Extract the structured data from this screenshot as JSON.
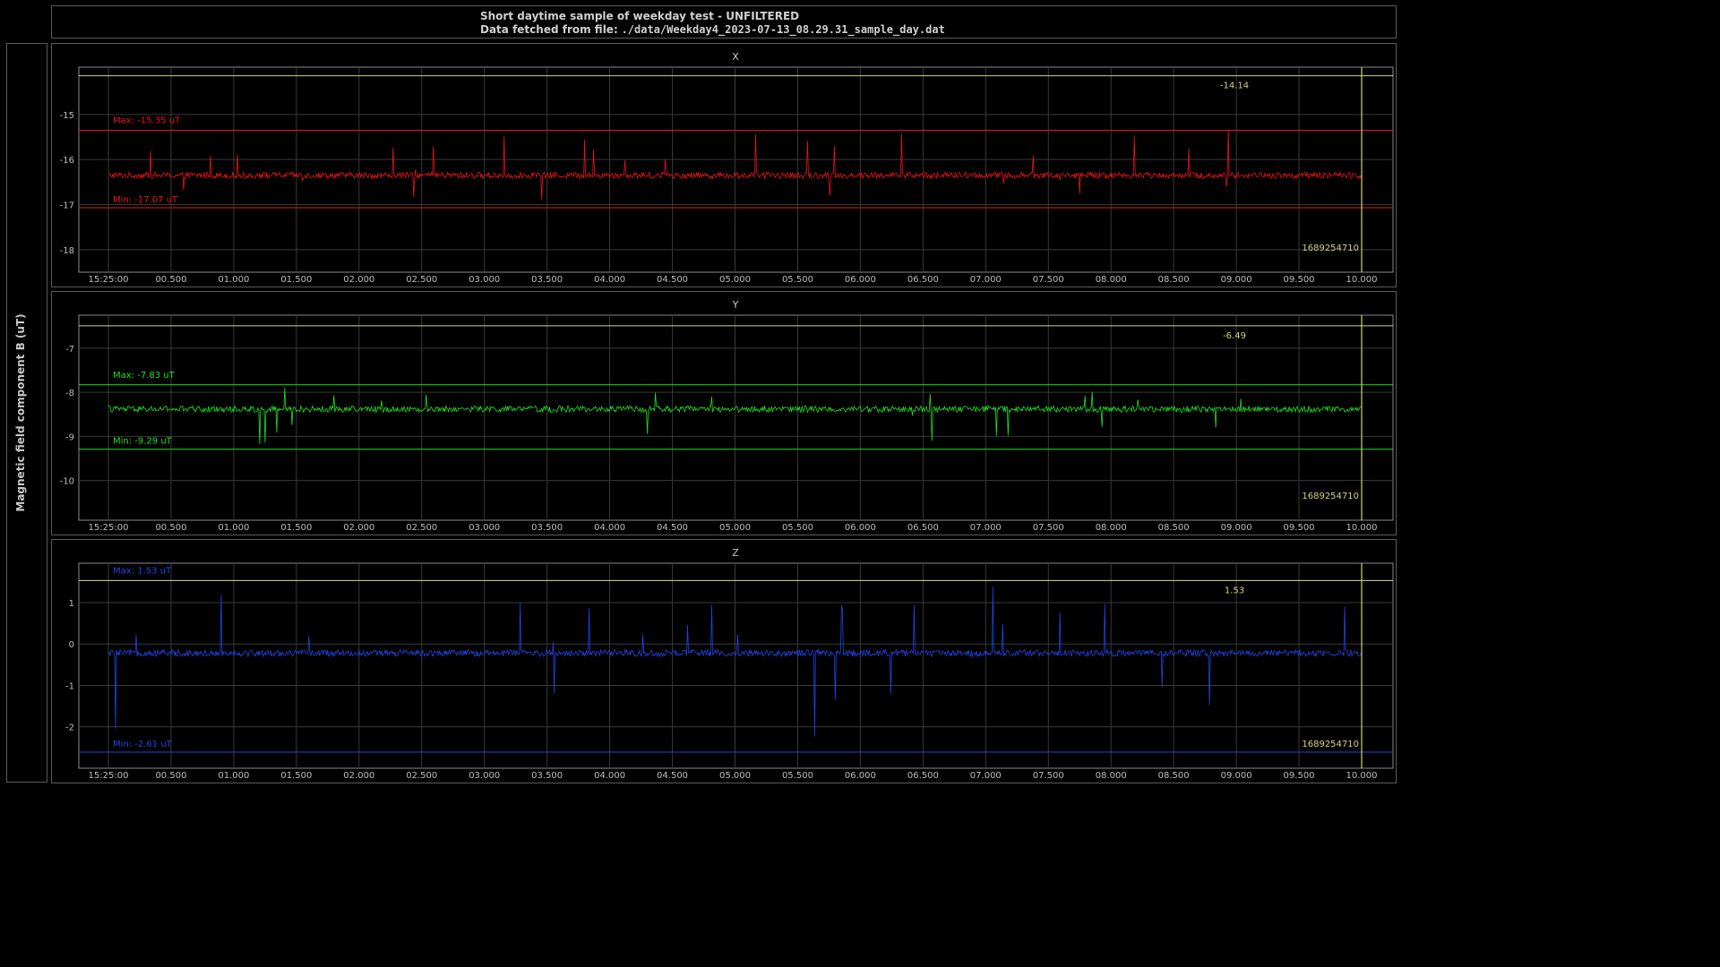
{
  "header": {
    "title": "Short daytime sample of weekday test - UNFILTERED",
    "subtitle_label": "Data fetched from file:",
    "subtitle_path": "./data/Weekday4_2023-07-13_08.29.31_sample_day.dat"
  },
  "ylabel": "Magnetic field component B (uT)",
  "colors": {
    "x": "#e8141c",
    "y": "#20e020",
    "z": "#1e46e6",
    "cursor": "#d2d282",
    "grid": "#3a3a3a",
    "axis": "#8a8a8a"
  },
  "chart_data": [
    {
      "type": "line",
      "title": "X",
      "x_ticks": [
        "15:25:00",
        "00.500",
        "01.000",
        "01.500",
        "02.000",
        "02.500",
        "03.000",
        "03.500",
        "04.000",
        "04.500",
        "05.000",
        "05.500",
        "06.000",
        "06.500",
        "07.000",
        "07.500",
        "08.000",
        "08.500",
        "09.000",
        "09.500",
        "10.000"
      ],
      "y_ticks": [
        -15,
        -16,
        -17,
        -18
      ],
      "ylim": [
        -18.5,
        -13.95
      ],
      "series": [
        {
          "baseline": -16.35,
          "noise": 0.07,
          "spike_up": 1.0,
          "spike_down": 0.72
        }
      ],
      "max": -15.35,
      "max_label": "Max: -15.35 uT",
      "min": -17.07,
      "min_label": "Min: -17.07 uT",
      "cursor_value": -14.14,
      "cursor_value_label": "-14.14",
      "cursor_time_label": "1689254710"
    },
    {
      "type": "line",
      "title": "Y",
      "x_ticks": [
        "15:25:00",
        "00.500",
        "01.000",
        "01.500",
        "02.000",
        "02.500",
        "03.000",
        "03.500",
        "04.000",
        "04.500",
        "05.000",
        "05.500",
        "06.000",
        "06.500",
        "07.000",
        "07.500",
        "08.000",
        "08.500",
        "09.000",
        "09.500",
        "10.000"
      ],
      "y_ticks": [
        -7,
        -8,
        -9,
        -10
      ],
      "ylim": [
        -10.9,
        -6.25
      ],
      "series": [
        {
          "baseline": -8.38,
          "noise": 0.07,
          "spike_up": 0.55,
          "spike_down": 0.91
        }
      ],
      "max": -7.83,
      "max_label": "Max: -7.83 uT",
      "min": -9.29,
      "min_label": "Min: -9.29 uT",
      "cursor_value": -6.49,
      "cursor_value_label": "-6.49",
      "cursor_time_label": "1689254710"
    },
    {
      "type": "line",
      "title": "Z",
      "x_ticks": [
        "15:25:00",
        "00.500",
        "01.000",
        "01.500",
        "02.000",
        "02.500",
        "03.000",
        "03.500",
        "04.000",
        "04.500",
        "05.000",
        "05.500",
        "06.000",
        "06.500",
        "07.000",
        "07.500",
        "08.000",
        "08.500",
        "09.000",
        "09.500",
        "10.000"
      ],
      "y_ticks": [
        1,
        0,
        -1,
        -2
      ],
      "ylim": [
        -3.0,
        1.95
      ],
      "series": [
        {
          "baseline": -0.22,
          "noise": 0.08,
          "spike_up": 1.75,
          "spike_down": 2.39
        }
      ],
      "max": 1.53,
      "max_label": "Max: 1.53 uT",
      "min": -2.61,
      "min_label": "Min: -2.61 uT",
      "cursor_value": 1.53,
      "cursor_value_label": "1.53",
      "cursor_time_label": "1689254710"
    }
  ]
}
